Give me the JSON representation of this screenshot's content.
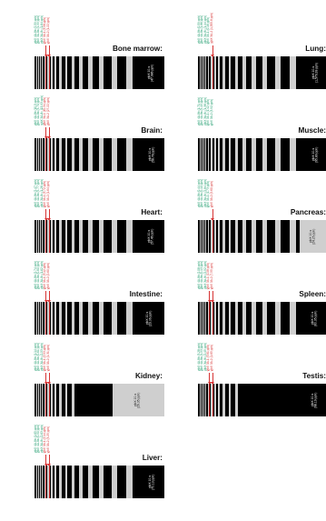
{
  "colors": {
    "marker": "#d63232",
    "green": "#1a9a6a",
    "light": "#cfcfcf",
    "dark": "#000000"
  },
  "panels": [
    {
      "id": "bone-marrow",
      "title": "Bone marrow:",
      "annos": [
        {
          "text": "yjbX 4A-8b (2.59 pph)",
          "color": "green"
        },
        {
          "text": "yjbX 3A-8a (4.99 pph)",
          "color": "green"
        },
        {
          "text": "yjbX 3A-8c (1.64 pph)",
          "color": "green"
        },
        {
          "text": "yjbX 3A-1 (3.58 pph)",
          "color": "red"
        },
        {
          "text": "yjbX 3A-2 (1.22 pph)",
          "color": "red"
        }
      ],
      "tail_label": {
        "line1": "yjbX 10-s",
        "line2": "(47.986 pph)"
      },
      "tail_dark": false
    },
    {
      "id": "lung",
      "title": "Lung:",
      "annos": [
        {
          "text": "yjbX 4A-8b (0.59 pph)",
          "color": "green"
        },
        {
          "text": "yjbX 4A-8a (1.86 pph)",
          "color": "green"
        },
        {
          "text": "yjbX 3A-8c (1.44 pph)",
          "color": "green"
        },
        {
          "text": "yjbX 3A-1 (0.16 pph)",
          "color": "green"
        },
        {
          "text": "yjbX 3A-2 (1,555.8 pph)",
          "color": "red"
        }
      ],
      "tail_label": {
        "line1": "yjbX 10-s",
        "line2": "(1,579.28 pph)"
      },
      "tail_dark": false
    },
    {
      "id": "brain",
      "title": "Brain:",
      "annos": [
        {
          "text": "yjbX 4A-8b (10.5 pph)",
          "color": "green"
        },
        {
          "text": "yjbX 4A-8a (3.70 pph)",
          "color": "green"
        },
        {
          "text": "yjbX 3A-8c (13.93 pph)",
          "color": "green"
        },
        {
          "text": "yjbX 3A-1 (10.34 pph)",
          "color": "red"
        },
        {
          "text": "yjbX 3A-2 (27.22 pph)",
          "color": "red"
        }
      ],
      "tail_label": {
        "line1": "yjbX 10-s",
        "line2": "(58.78 pph)"
      },
      "tail_dark": false
    },
    {
      "id": "muscle",
      "title": "Muscle:",
      "annos": [
        {
          "text": "yjbX 4A-8b (1.71 pph)",
          "color": "green"
        },
        {
          "text": "yjbX 4A-8a (5.15 pph)",
          "color": "green"
        },
        {
          "text": "yjbX 3A-8c (1.38 pph)",
          "color": "green"
        },
        {
          "text": "yjbX 3A-1 (1.42 pph)",
          "color": "green"
        },
        {
          "text": "yjbX 3A-2 (3.92 pph)",
          "color": "green"
        }
      ],
      "tail_label": {
        "line1": "yjbX 10-s",
        "line2": "(95.89 pph)"
      },
      "tail_dark": false
    },
    {
      "id": "heart",
      "title": "Heart:",
      "annos": [
        {
          "text": "yjbX 4A-8b (2.47 pph)",
          "color": "green"
        },
        {
          "text": "yjbX 4A-8a (5.77 pph)",
          "color": "green"
        },
        {
          "text": "yjbX 3A-8c (1.26 pph)",
          "color": "green"
        },
        {
          "text": "yjbX 3A-1 (3.72 pph)",
          "color": "red"
        },
        {
          "text": "yjbX 3A-2 (1.64 pph)",
          "color": "red"
        }
      ],
      "tail_label": {
        "line1": "yjbX 10-s",
        "line2": "(57.46 pph)"
      },
      "tail_dark": false
    },
    {
      "id": "pancreas",
      "title": "Pancreas:",
      "annos": [
        {
          "text": "yjbX 4A-8b (0.44 pph)",
          "color": "green"
        },
        {
          "text": "yjbX 4A-8a (0.10 pph)",
          "color": "green"
        },
        {
          "text": "yjbX 3A-8c (2.84 pph)",
          "color": "green"
        },
        {
          "text": "yjbX 3A-1 (1.73 pph)",
          "color": "green"
        },
        {
          "text": "yjbX 3A-2 (9.60 pph)",
          "color": "red"
        }
      ],
      "tail_label": {
        "line1": "yjbX 10-s",
        "line2": "(24.25 pph)"
      },
      "tail_dark": true
    },
    {
      "id": "intestine",
      "title": "Intestine:",
      "annos": [
        {
          "text": "yjbX 4A-8b (2.74 pph)",
          "color": "green"
        },
        {
          "text": "yjbX 4A-8a (0.60 pph)",
          "color": "green"
        },
        {
          "text": "yjbX 3A-8c (1.62 pph)",
          "color": "green"
        },
        {
          "text": "yjbX 3A-1 (3.12 pph)",
          "color": "red"
        },
        {
          "text": "yjbX 3A-2 (2.60 pph)",
          "color": "red"
        }
      ],
      "tail_label": {
        "line1": "yjbX 10-s",
        "line2": "(23.06 pph)"
      },
      "tail_dark": false
    },
    {
      "id": "spleen",
      "title": "Spleen:",
      "annos": [
        {
          "text": "yjbX 4A-8b (2.08 pph)",
          "color": "green"
        },
        {
          "text": "yjbX 4A-8a (0.13 pph)",
          "color": "green"
        },
        {
          "text": "yjbX 3A-8c (2.52 pph)",
          "color": "green"
        },
        {
          "text": "yjbX 3A-1 (1.08 pph)",
          "color": "red"
        },
        {
          "text": "yjbX 3A-2 (7.55 pph)",
          "color": "red"
        }
      ],
      "tail_label": {
        "line1": "yjbX 10-s",
        "line2": "(60.35 pph)"
      },
      "tail_dark": false
    },
    {
      "id": "kidney",
      "title": "Kidney:",
      "annos": [
        {
          "text": "yjbX 4A-8b (1.14 pph)",
          "color": "green"
        },
        {
          "text": "yjbX 4A-8a (0.61 pph)",
          "color": "green"
        },
        {
          "text": "yjbX 3A-8c (2.53 pph)",
          "color": "green"
        },
        {
          "text": "yjbX 3A-1 (2.53 pph)",
          "color": "red"
        },
        {
          "text": "yjbX 3A-2 (1.31 pph)",
          "color": "red"
        }
      ],
      "tail_label": {
        "line1": "yjbX 10-s",
        "line2": "(29.35 pph)"
      },
      "tail_dark": true
    },
    {
      "id": "testis",
      "title": "Testis:",
      "annos": [
        {
          "text": "yjbX 4A-8b (3.28 pph)",
          "color": "green"
        },
        {
          "text": "yjbX 4A-8a (4.53 pph)",
          "color": "green"
        },
        {
          "text": "yjbX 3A-8c (2.45 pph)",
          "color": "green"
        },
        {
          "text": "yjbX 3A-1 (3.61 pph)",
          "color": "red"
        },
        {
          "text": "yjbX 3A-2 (1.65 pph)",
          "color": "red"
        }
      ],
      "tail_label": {
        "line1": "yjbX 10-s",
        "line2": "(98.19 pph)"
      },
      "tail_dark": false
    },
    {
      "id": "liver",
      "title": "Liver:",
      "annos": [
        {
          "text": "yjbX 4A-8b (1.65 pph)",
          "color": "green"
        },
        {
          "text": "yjbX 4A-8a (0.50 pph)",
          "color": "green"
        },
        {
          "text": "yjbX 3A-8c (2.63 pph)",
          "color": "green"
        },
        {
          "text": "yjbX 3A-1 (2.14 pph)",
          "color": "red"
        },
        {
          "text": "yjbX 3A-2 (3.25 pph)",
          "color": "red"
        }
      ],
      "tail_label": {
        "line1": "yjbX 10-s",
        "line2": "(70.13 pph)"
      },
      "tail_dark": false
    }
  ]
}
